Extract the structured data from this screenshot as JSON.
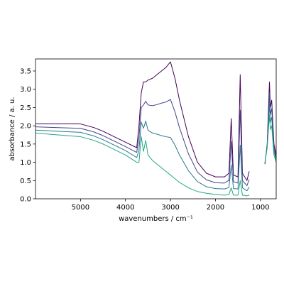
{
  "chart_data": {
    "type": "line",
    "xlabel": "wavenumbers / cm⁻¹",
    "ylabel": "absorbance / a. u.",
    "x": [
      6000,
      5500,
      5000,
      4700,
      4500,
      4000,
      3750,
      3700,
      3650,
      3600,
      3550,
      3500,
      3400,
      3300,
      3200,
      3100,
      3000,
      2900,
      2800,
      2600,
      2400,
      2200,
      2000,
      1800,
      1700,
      1650,
      1600,
      1500,
      1450,
      1400,
      1300,
      1250,
      1100,
      900,
      850,
      800,
      780,
      750,
      700,
      650
    ],
    "series": [
      {
        "color": "#440154",
        "values": [
          2.05,
          2.05,
          2.05,
          1.95,
          1.85,
          1.55,
          1.4,
          2.0,
          2.9,
          3.2,
          3.2,
          3.25,
          3.3,
          3.4,
          3.5,
          3.6,
          3.75,
          3.3,
          2.7,
          1.7,
          1.0,
          0.7,
          0.6,
          0.6,
          0.7,
          2.2,
          0.65,
          0.6,
          3.4,
          0.7,
          0.5,
          0.75,
          null,
          0.95,
          1.5,
          3.2,
          2.5,
          2.7,
          1.5,
          1.2
        ]
      },
      {
        "color": "#414487",
        "values": [
          1.97,
          1.95,
          1.93,
          1.83,
          1.73,
          1.43,
          1.27,
          1.67,
          2.5,
          2.57,
          2.67,
          2.57,
          2.55,
          2.58,
          2.62,
          2.65,
          2.72,
          2.38,
          1.95,
          1.23,
          0.73,
          0.52,
          0.44,
          0.43,
          0.51,
          1.57,
          0.47,
          0.43,
          2.43,
          0.5,
          0.36,
          0.53,
          null,
          0.97,
          1.47,
          2.9,
          2.3,
          2.47,
          1.4,
          1.13
        ]
      },
      {
        "color": "#2a788e",
        "values": [
          1.88,
          1.85,
          1.82,
          1.72,
          1.62,
          1.32,
          1.13,
          1.33,
          2.1,
          1.93,
          2.13,
          1.88,
          1.8,
          1.77,
          1.73,
          1.7,
          1.68,
          1.47,
          1.2,
          0.77,
          0.47,
          0.33,
          0.28,
          0.27,
          0.31,
          0.93,
          0.28,
          0.27,
          1.47,
          0.3,
          0.22,
          0.32,
          null,
          0.98,
          1.43,
          2.6,
          2.1,
          2.23,
          1.3,
          1.07
        ]
      },
      {
        "color": "#22a884",
        "values": [
          1.8,
          1.75,
          1.7,
          1.6,
          1.5,
          1.2,
          1.0,
          1.0,
          1.7,
          1.3,
          1.6,
          1.2,
          1.05,
          0.95,
          0.85,
          0.75,
          0.65,
          0.55,
          0.45,
          0.3,
          0.2,
          0.15,
          0.12,
          0.1,
          0.12,
          0.3,
          0.1,
          0.1,
          0.5,
          0.1,
          0.08,
          0.1,
          null,
          1.0,
          1.4,
          2.3,
          1.9,
          2.0,
          1.2,
          1.0
        ]
      }
    ],
    "xlim": [
      6000,
      650
    ],
    "ylim": [
      0,
      3.83
    ],
    "xticks": [
      5000,
      4000,
      3000,
      2000,
      1000
    ],
    "yticks": [
      {
        "value": 0,
        "label": "0.0"
      },
      0.5,
      {
        "value": 1,
        "label": "1.0"
      },
      1.5,
      {
        "value": 2,
        "label": "2.0"
      },
      2.5,
      {
        "value": 3,
        "label": "3.0"
      },
      3.5
    ]
  }
}
